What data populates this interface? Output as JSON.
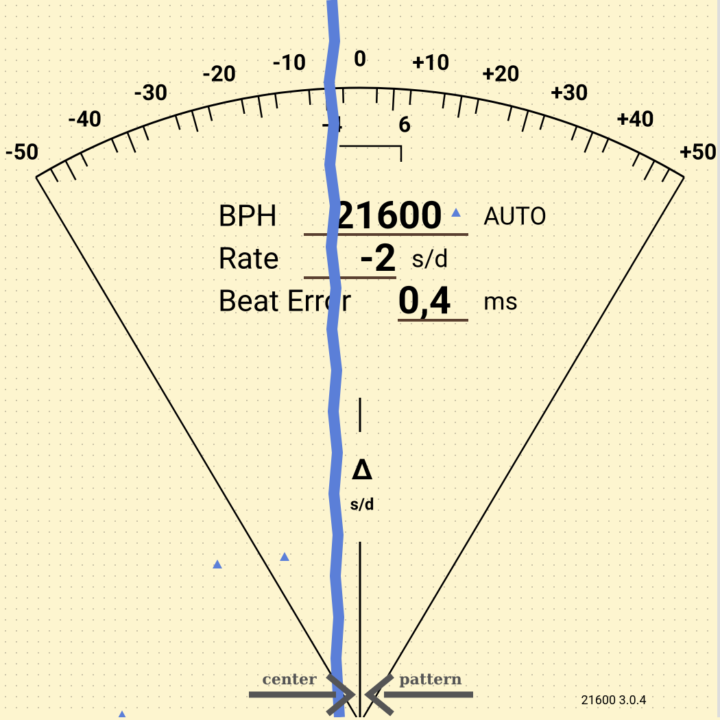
{
  "scale": {
    "labels": [
      "-50",
      "-40",
      "-30",
      "-20",
      "-10",
      "0",
      "+10",
      "+20",
      "+30",
      "+40",
      "+50"
    ],
    "range_markers": [
      "-4",
      "6"
    ]
  },
  "readout": {
    "rows": [
      {
        "label": "BPH",
        "value": "21600",
        "unit": "AUTO"
      },
      {
        "label": "Rate",
        "value": "-2",
        "unit": "s/d"
      },
      {
        "label": "Beat Error",
        "value": "0,4",
        "unit": "ms"
      }
    ]
  },
  "delta": {
    "symbol": "Δ",
    "unit": "s/d"
  },
  "buttons": [
    "center",
    "pattern"
  ],
  "version": "21600 3.0.4"
}
